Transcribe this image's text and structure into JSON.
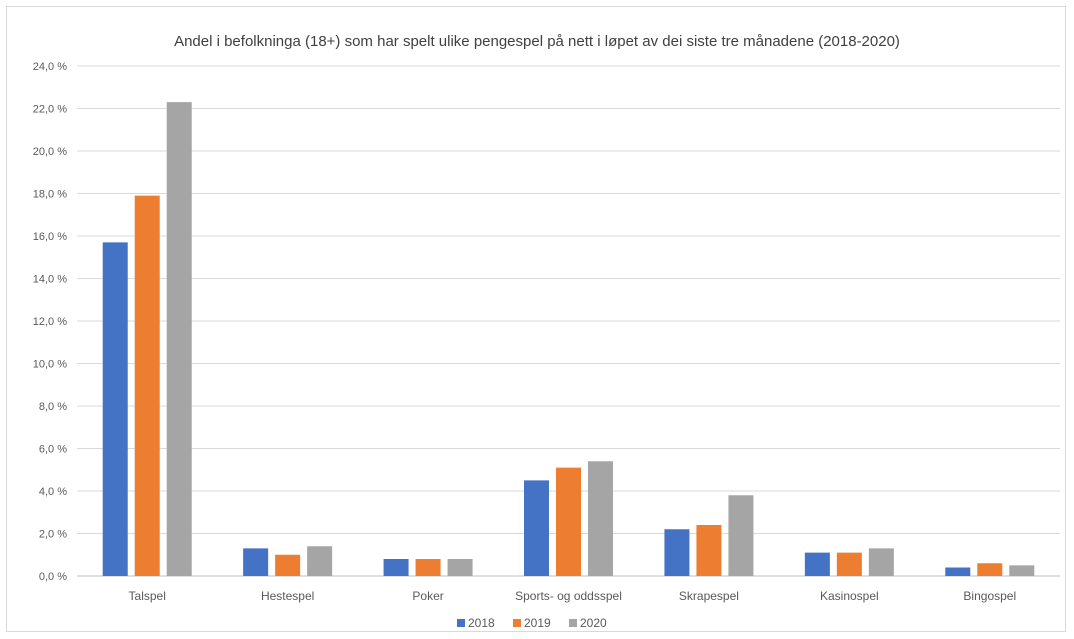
{
  "chart_data": {
    "type": "bar",
    "title": "Andel i befolkninga (18+) som har spelt ulike pengespel på nett i løpet av dei siste tre månadene (2018-2020)",
    "xlabel": "",
    "ylabel": "",
    "ylim": [
      0,
      24
    ],
    "y_ticks": [
      "0,0 %",
      "2,0 %",
      "4,0 %",
      "6,0 %",
      "8,0 %",
      "10,0 %",
      "12,0 %",
      "14,0 %",
      "16,0 %",
      "18,0 %",
      "20,0 %",
      "22,0 %",
      "24,0 %"
    ],
    "grid": true,
    "legend_position": "bottom",
    "categories": [
      "Talspel",
      "Hestespel",
      "Poker",
      "Sports- og oddsspel",
      "Skrapespel",
      "Kasinospel",
      "Bingospel"
    ],
    "series": [
      {
        "name": "2018",
        "color": "#4472c4",
        "values": [
          15.7,
          1.3,
          0.8,
          4.5,
          2.2,
          1.1,
          0.4
        ]
      },
      {
        "name": "2019",
        "color": "#ed7d31",
        "values": [
          17.9,
          1.0,
          0.8,
          5.1,
          2.4,
          1.1,
          0.6
        ]
      },
      {
        "name": "2020",
        "color": "#a5a5a5",
        "values": [
          22.3,
          1.4,
          0.8,
          5.4,
          3.8,
          1.3,
          0.5
        ]
      }
    ]
  }
}
